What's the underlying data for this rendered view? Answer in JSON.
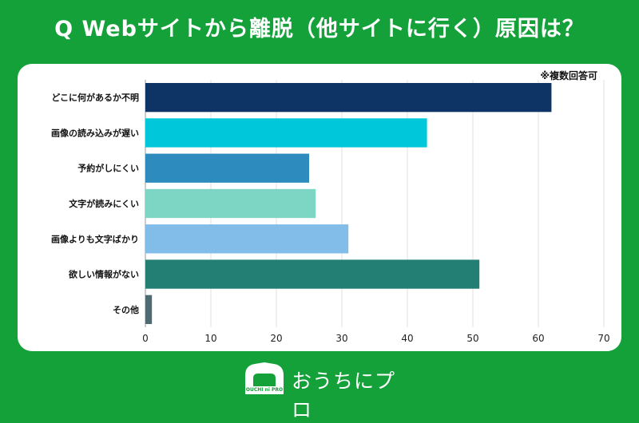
{
  "header": {
    "title": "Q Webサイトから離脱（他サイトに行く）原因は？"
  },
  "footnote": "※複数回答可",
  "logo": {
    "text": "おうちにプロ",
    "mark_text": "OUCHI ni PRO"
  },
  "chart_data": {
    "type": "bar",
    "orientation": "horizontal",
    "title": "Q Webサイトから離脱（他サイトに行く）原因は？",
    "categories": [
      "どこに何があるか不明",
      "画像の読み込みが遅い",
      "予約がしにくい",
      "文字が読みにくい",
      "画像よりも文字ばかり",
      "欲しい情報がない",
      "その他"
    ],
    "values": [
      62,
      43,
      25,
      26,
      31,
      51,
      1
    ],
    "colors": [
      "#0e3466",
      "#00c8da",
      "#2e8bbd",
      "#7dd6c3",
      "#82bdea",
      "#237f73",
      "#4f6b72"
    ],
    "xlim": [
      0,
      70
    ],
    "xticks": [
      0,
      10,
      20,
      30,
      40,
      50,
      60,
      70
    ],
    "xlabel": "",
    "ylabel": "",
    "grid": true
  }
}
